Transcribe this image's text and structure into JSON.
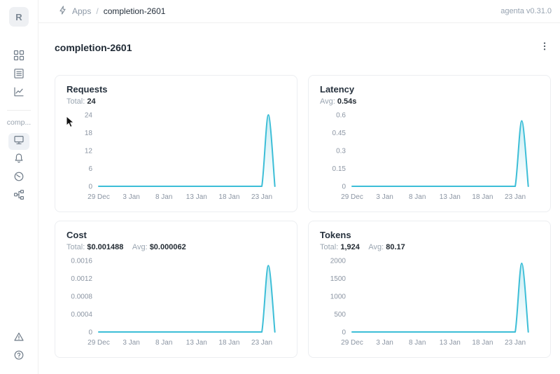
{
  "app": {
    "version_label": "agenta v0.31.0"
  },
  "topbar": {
    "breadcrumb": {
      "root": "Apps",
      "separator": "/",
      "current": "completion-2601"
    }
  },
  "sidebar": {
    "logo_letter": "R",
    "app_name_truncated": "comp...",
    "top_items": [
      "app-management",
      "test-sets",
      "observability"
    ],
    "app_items": [
      "overview",
      "notifications",
      "gauge",
      "traces"
    ],
    "bottom_items": [
      "alerts",
      "help"
    ],
    "selected_item": "overview"
  },
  "main": {
    "title": "completion-2601"
  },
  "colors": {
    "line": "#3cbed7",
    "fill_top": "rgba(60,190,215,0.28)",
    "tick_text": "#8b95a3"
  },
  "chart_data": [
    {
      "type": "area",
      "title": "Requests",
      "stats": [
        {
          "label": "Total:",
          "value": "24"
        }
      ],
      "x": [
        0,
        1,
        2,
        3,
        4,
        5,
        6,
        7,
        8,
        9,
        10,
        11,
        12,
        13,
        14,
        15,
        16,
        17,
        18,
        19,
        20,
        21,
        22,
        23,
        24,
        25,
        26,
        27
      ],
      "values": [
        0,
        0,
        0,
        0,
        0,
        0,
        0,
        0,
        0,
        0,
        0,
        0,
        0,
        0,
        0,
        0,
        0,
        0,
        0,
        0,
        0,
        0,
        0,
        0,
        0,
        0,
        24,
        0
      ],
      "xlim": [
        0,
        28
      ],
      "ylim": [
        0,
        24
      ],
      "x_tick_positions": [
        0,
        5,
        10,
        15,
        20,
        25
      ],
      "x_tick_labels": [
        "29 Dec",
        "3 Jan",
        "8 Jan",
        "13 Jan",
        "18 Jan",
        "23 Jan"
      ],
      "y_ticks": [
        0,
        6,
        12,
        18,
        24
      ],
      "y_tick_labels": [
        "0",
        "6",
        "12",
        "18",
        "24"
      ],
      "grid": false,
      "legend": false
    },
    {
      "type": "area",
      "title": "Latency",
      "stats": [
        {
          "label": "Avg:",
          "value": "0.54s"
        }
      ],
      "x": [
        0,
        1,
        2,
        3,
        4,
        5,
        6,
        7,
        8,
        9,
        10,
        11,
        12,
        13,
        14,
        15,
        16,
        17,
        18,
        19,
        20,
        21,
        22,
        23,
        24,
        25,
        26,
        27
      ],
      "values": [
        0,
        0,
        0,
        0,
        0,
        0,
        0,
        0,
        0,
        0,
        0,
        0,
        0,
        0,
        0,
        0,
        0,
        0,
        0,
        0,
        0,
        0,
        0,
        0,
        0,
        0,
        0.55,
        0
      ],
      "xlim": [
        0,
        28
      ],
      "ylim": [
        0,
        0.6
      ],
      "x_tick_positions": [
        0,
        5,
        10,
        15,
        20,
        25
      ],
      "x_tick_labels": [
        "29 Dec",
        "3 Jan",
        "8 Jan",
        "13 Jan",
        "18 Jan",
        "23 Jan"
      ],
      "y_ticks": [
        0,
        0.15,
        0.3,
        0.45,
        0.6
      ],
      "y_tick_labels": [
        "0",
        "0.15",
        "0.3",
        "0.45",
        "0.6"
      ],
      "grid": false,
      "legend": false
    },
    {
      "type": "area",
      "title": "Cost",
      "stats": [
        {
          "label": "Total:",
          "value": "$0.001488"
        },
        {
          "label": "Avg:",
          "value": "$0.000062"
        }
      ],
      "x": [
        0,
        1,
        2,
        3,
        4,
        5,
        6,
        7,
        8,
        9,
        10,
        11,
        12,
        13,
        14,
        15,
        16,
        17,
        18,
        19,
        20,
        21,
        22,
        23,
        24,
        25,
        26,
        27
      ],
      "values": [
        0,
        0,
        0,
        0,
        0,
        0,
        0,
        0,
        0,
        0,
        0,
        0,
        0,
        0,
        0,
        0,
        0,
        0,
        0,
        0,
        0,
        0,
        0,
        0,
        0,
        0,
        0.001488,
        0
      ],
      "xlim": [
        0,
        28
      ],
      "ylim": [
        0,
        0.0016
      ],
      "x_tick_positions": [
        0,
        5,
        10,
        15,
        20,
        25
      ],
      "x_tick_labels": [
        "29 Dec",
        "3 Jan",
        "8 Jan",
        "13 Jan",
        "18 Jan",
        "23 Jan"
      ],
      "y_ticks": [
        0,
        0.0004,
        0.0008,
        0.0012,
        0.0016
      ],
      "y_tick_labels": [
        "0",
        "0.0004",
        "0.0008",
        "0.0012",
        "0.0016"
      ],
      "grid": false,
      "legend": false
    },
    {
      "type": "area",
      "title": "Tokens",
      "stats": [
        {
          "label": "Total:",
          "value": "1,924"
        },
        {
          "label": "Avg:",
          "value": "80.17"
        }
      ],
      "x": [
        0,
        1,
        2,
        3,
        4,
        5,
        6,
        7,
        8,
        9,
        10,
        11,
        12,
        13,
        14,
        15,
        16,
        17,
        18,
        19,
        20,
        21,
        22,
        23,
        24,
        25,
        26,
        27
      ],
      "values": [
        0,
        0,
        0,
        0,
        0,
        0,
        0,
        0,
        0,
        0,
        0,
        0,
        0,
        0,
        0,
        0,
        0,
        0,
        0,
        0,
        0,
        0,
        0,
        0,
        0,
        0,
        1924,
        0
      ],
      "xlim": [
        0,
        28
      ],
      "ylim": [
        0,
        2000
      ],
      "x_tick_positions": [
        0,
        5,
        10,
        15,
        20,
        25
      ],
      "x_tick_labels": [
        "29 Dec",
        "3 Jan",
        "8 Jan",
        "13 Jan",
        "18 Jan",
        "23 Jan"
      ],
      "y_ticks": [
        0,
        500,
        1000,
        1500,
        2000
      ],
      "y_tick_labels": [
        "0",
        "500",
        "1000",
        "1500",
        "2000"
      ],
      "grid": false,
      "legend": false
    }
  ]
}
